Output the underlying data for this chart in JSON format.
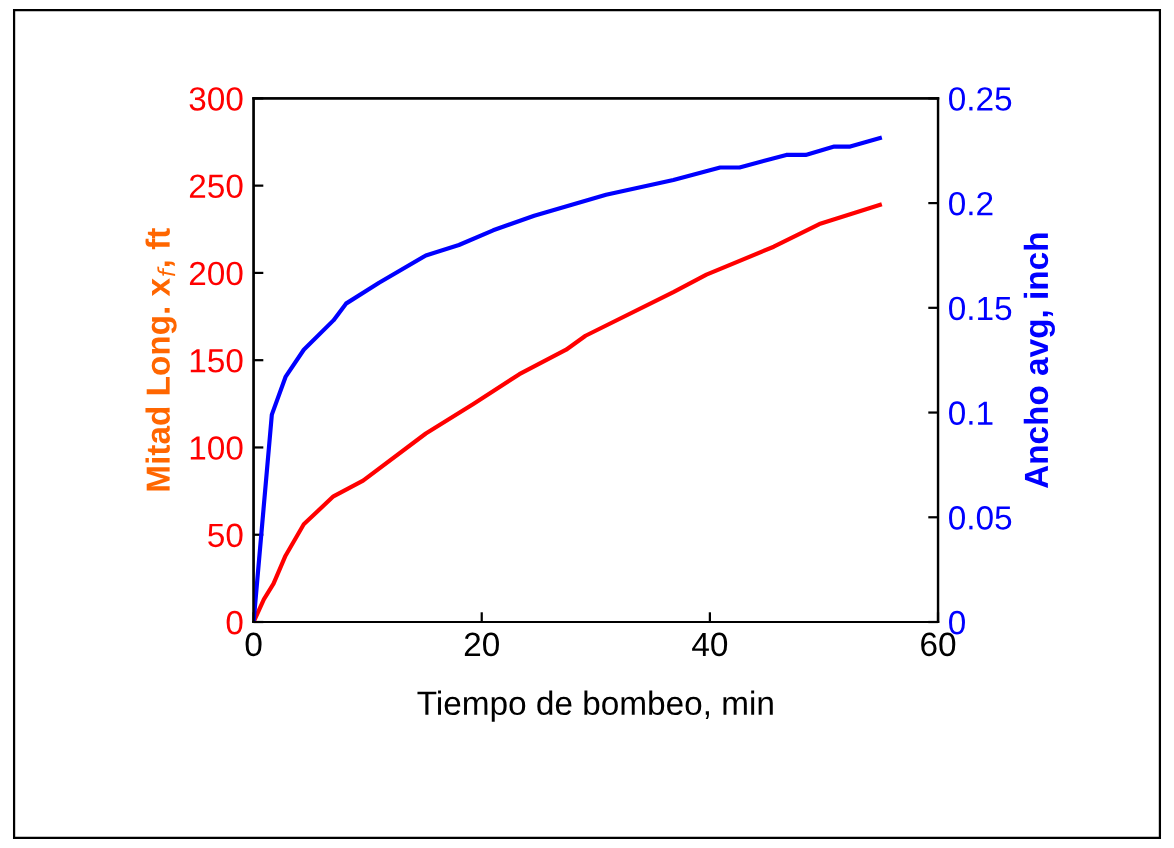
{
  "chart_data": {
    "type": "line",
    "xlabel": "Tiempo de bombeo, min",
    "ylabel": "Mitad Long. x$_{f}$, ft",
    "y2label": "Ancho avg, inch",
    "xlim": [
      0,
      60
    ],
    "xticks": [
      0,
      20,
      40,
      60
    ],
    "ylim": [
      0,
      300
    ],
    "yticks": [
      0,
      50,
      100,
      150,
      200,
      250,
      300
    ],
    "y2lim": [
      0,
      0.25
    ],
    "y2ticks": [
      0,
      0.05,
      0.1,
      0.15,
      0.2,
      0.25
    ],
    "marker": "none",
    "line_style": "solid",
    "series": [
      {
        "color": "#ff0000",
        "x": [
          0,
          0.9,
          1.75,
          2.8,
          4.4,
          7,
          9.6,
          15.1,
          19.3,
          23.3,
          27.4,
          29.1,
          36.8,
          39.7,
          45.6,
          49.6,
          54.9
        ],
        "values": [
          0,
          13,
          22,
          38,
          56,
          72,
          81,
          108,
          125,
          142,
          156,
          164,
          189,
          199,
          215,
          228,
          239
        ]
      },
      {
        "color": "#0000ff",
        "axis": "y2",
        "x": [
          0,
          1.6,
          2.8,
          4.4,
          7,
          8.1,
          11,
          15.1,
          18,
          21,
          24.6,
          30.9,
          36.8,
          40.9,
          42.6,
          46.7,
          48.4,
          50.9,
          52.3,
          54.9
        ],
        "values": [
          0,
          0.099,
          0.117,
          0.13,
          0.144,
          0.152,
          0.162,
          0.175,
          0.18,
          0.187,
          0.194,
          0.204,
          0.211,
          0.217,
          0.217,
          0.223,
          0.223,
          0.227,
          0.227,
          0.231
        ]
      }
    ]
  }
}
